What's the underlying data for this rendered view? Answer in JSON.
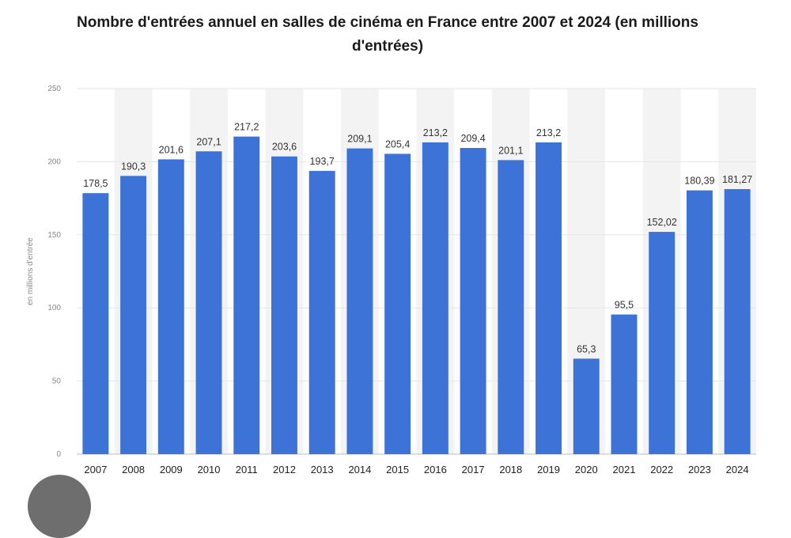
{
  "chart_data": {
    "type": "bar",
    "title": "Nombre d'entrées annuel en salles de cinéma en France entre 2007 et 2024 (en millions d'entrées)",
    "xlabel": "",
    "ylabel": "en millions d'entrée",
    "categories": [
      "2007",
      "2008",
      "2009",
      "2010",
      "2011",
      "2012",
      "2013",
      "2014",
      "2015",
      "2016",
      "2017",
      "2018",
      "2019",
      "2020",
      "2021",
      "2022",
      "2023",
      "2024"
    ],
    "values": [
      178.5,
      190.3,
      201.6,
      207.1,
      217.2,
      203.6,
      193.7,
      209.1,
      205.4,
      213.2,
      209.4,
      201.1,
      213.2,
      65.3,
      95.5,
      152.02,
      180.39,
      181.27
    ],
    "value_labels": [
      "178,5",
      "190,3",
      "201,6",
      "207,1",
      "217,2",
      "203,6",
      "193,7",
      "209,1",
      "205,4",
      "213,2",
      "209,4",
      "201,1",
      "213,2",
      "65,3",
      "95,5",
      "152,02",
      "180,39",
      "181,27"
    ],
    "ylim": [
      0,
      250
    ],
    "yticks": [
      0,
      50,
      100,
      150,
      200,
      250
    ],
    "grid": true,
    "bar_color": "#3d72d6",
    "band_color": "#f3f3f3"
  }
}
